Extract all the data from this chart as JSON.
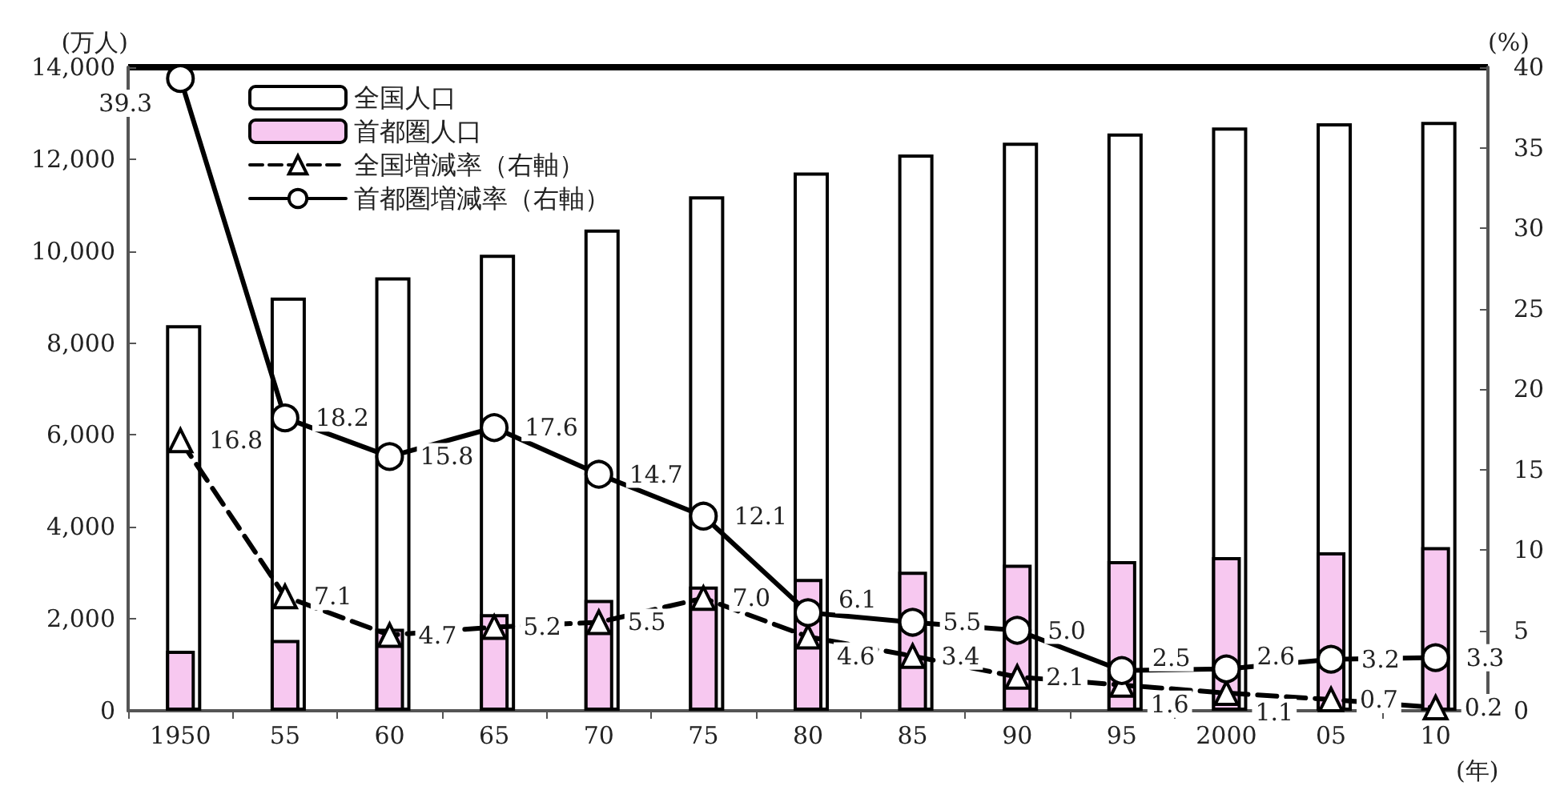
{
  "chart_data": {
    "type": "bar",
    "ylabel": "(万人)",
    "y2label": "(%)",
    "xlabel": "(年)",
    "categories": [
      "1950",
      "55",
      "60",
      "65",
      "70",
      "75",
      "80",
      "85",
      "90",
      "95",
      "2000",
      "05",
      "10"
    ],
    "series": [
      {
        "name": "全国人口",
        "color": "#ffffff",
        "values": [
          8390,
          8990,
          9430,
          9920,
          10470,
          11190,
          11710,
          12100,
          12360,
          12560,
          12690,
          12780,
          12810
        ]
      },
      {
        "name": "首都圏人口",
        "color": "#f7c8f0",
        "values": [
          1305,
          1542,
          1786,
          2102,
          2411,
          2704,
          2870,
          3027,
          3180,
          3258,
          3342,
          3448,
          3562
        ]
      },
      {
        "name": "全国増減率（右軸）",
        "type": "line",
        "axis": "y2",
        "color": "#000000",
        "marker": "triangle",
        "line_style": "dashed",
        "values": [
          16.8,
          7.1,
          4.7,
          5.2,
          5.5,
          7.0,
          4.6,
          3.4,
          2.1,
          1.6,
          1.1,
          0.7,
          0.2
        ],
        "value_labels": [
          "16.8",
          "7.1",
          "4.7",
          "5.2",
          "5.5",
          "7.0",
          "4.6",
          "3.4",
          "2.1",
          "1.6",
          "1.1",
          "0.7",
          "0.2"
        ]
      },
      {
        "name": "首都圏増減率（右軸）",
        "type": "line",
        "axis": "y2",
        "color": "#000000",
        "marker": "circle",
        "line_style": "solid",
        "values": [
          39.3,
          18.2,
          15.8,
          17.6,
          14.7,
          12.1,
          6.1,
          5.5,
          5.0,
          2.5,
          2.6,
          3.2,
          3.3
        ],
        "value_labels": [
          "39.3",
          "18.2",
          "15.8",
          "17.6",
          "14.7",
          "12.1",
          "6.1",
          "5.5",
          "5.0",
          "2.5",
          "2.6",
          "3.2",
          "3.3"
        ]
      }
    ],
    "ylim": [
      0,
      14000
    ],
    "yticks": [
      {
        "value": 0,
        "label": "0"
      },
      {
        "value": 2000,
        "label": "2,000"
      },
      {
        "value": 4000,
        "label": "4,000"
      },
      {
        "value": 6000,
        "label": "6,000"
      },
      {
        "value": 8000,
        "label": "8,000"
      },
      {
        "value": 10000,
        "label": "10,000"
      },
      {
        "value": 12000,
        "label": "12,000"
      },
      {
        "value": 14000,
        "label": "14,000"
      }
    ],
    "y2lim": [
      0,
      40
    ],
    "y2ticks": [
      0,
      5,
      10,
      15,
      20,
      25,
      30,
      35,
      40
    ],
    "legend": "top left",
    "grid": false
  }
}
